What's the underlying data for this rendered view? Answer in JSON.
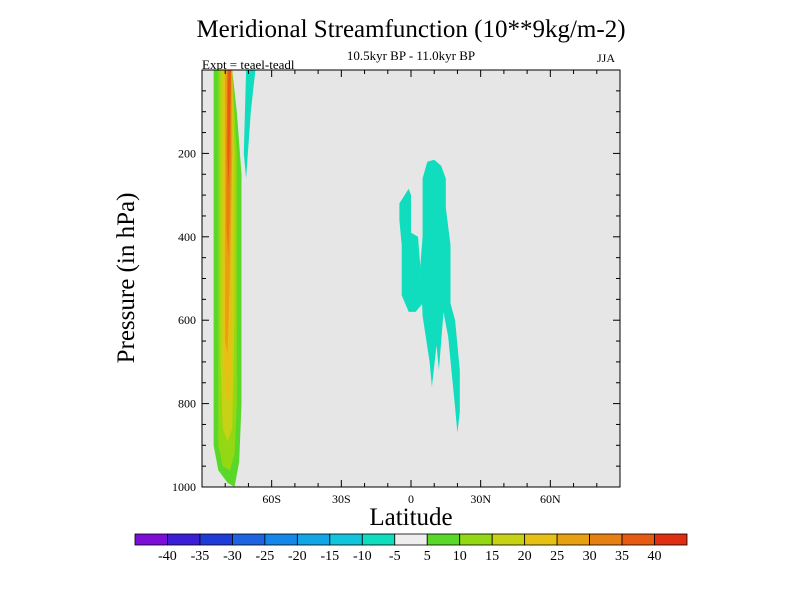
{
  "chart_data": {
    "type": "contour",
    "title": "Meridional Streamfunction (10**9kg/m-2)",
    "subtitle": "10.5kyr BP - 11.0kyr BP",
    "experiment": "Expt = teael-teadl",
    "season": "JJA",
    "xlabel": "Latitude",
    "ylabel": "Pressure (in hPa)",
    "xlim": [
      -90,
      90
    ],
    "ylim": [
      1000,
      0
    ],
    "x_ticks": [
      {
        "value": -60,
        "label": "60S"
      },
      {
        "value": -30,
        "label": "30S"
      },
      {
        "value": 0,
        "label": "0"
      },
      {
        "value": 30,
        "label": "30N"
      },
      {
        "value": 60,
        "label": "60N"
      }
    ],
    "y_ticks": [
      {
        "value": 200,
        "label": "200"
      },
      {
        "value": 400,
        "label": "400"
      },
      {
        "value": 600,
        "label": "600"
      },
      {
        "value": 800,
        "label": "800"
      },
      {
        "value": 1000,
        "label": "1000"
      }
    ],
    "background_color": "#e6e6e6",
    "colorbar": {
      "levels": [
        -40,
        -35,
        -30,
        -25,
        -20,
        -15,
        -10,
        -5,
        5,
        10,
        15,
        20,
        25,
        30,
        35,
        40
      ],
      "colors": [
        "#7d0ed8",
        "#3b1ed6",
        "#1e3cd8",
        "#1e64e0",
        "#1487e8",
        "#12a6e6",
        "#10c5dc",
        "#10dcbe",
        "#eeeeee",
        "#5ad82a",
        "#94d814",
        "#c8d214",
        "#e6c012",
        "#e6a012",
        "#e68012",
        "#e65a12",
        "#e02e12"
      ]
    },
    "regions": [
      {
        "name": "positive-5",
        "fill": "#5ad82a",
        "points": [
          [
            -85,
            0
          ],
          [
            -77,
            0
          ],
          [
            -75,
            100
          ],
          [
            -73,
            250
          ],
          [
            -73,
            400
          ],
          [
            -73,
            600
          ],
          [
            -73,
            800
          ],
          [
            -74,
            940
          ],
          [
            -76,
            1000
          ],
          [
            -79,
            990
          ],
          [
            -83,
            960
          ],
          [
            -85,
            900
          ],
          [
            -85,
            600
          ],
          [
            -85,
            300
          ]
        ]
      },
      {
        "name": "positive-10",
        "fill": "#94d814",
        "points": [
          [
            -83,
            0
          ],
          [
            -77,
            0
          ],
          [
            -75,
            200
          ],
          [
            -75,
            500
          ],
          [
            -75,
            800
          ],
          [
            -76,
            920
          ],
          [
            -78,
            960
          ],
          [
            -81,
            950
          ],
          [
            -83,
            900
          ],
          [
            -83,
            600
          ],
          [
            -83,
            300
          ]
        ]
      },
      {
        "name": "positive-15",
        "fill": "#c8d214",
        "points": [
          [
            -82,
            0
          ],
          [
            -77,
            0
          ],
          [
            -76,
            200
          ],
          [
            -76,
            600
          ],
          [
            -77,
            860
          ],
          [
            -79,
            890
          ],
          [
            -81,
            860
          ],
          [
            -82,
            700
          ],
          [
            -82,
            300
          ]
        ]
      },
      {
        "name": "positive-20",
        "fill": "#e6c012",
        "points": [
          [
            -81,
            0
          ],
          [
            -77,
            0
          ],
          [
            -77,
            300
          ],
          [
            -77,
            600
          ],
          [
            -78,
            800
          ],
          [
            -80,
            780
          ],
          [
            -81,
            600
          ],
          [
            -81,
            300
          ]
        ]
      },
      {
        "name": "positive-25",
        "fill": "#e6a012",
        "points": [
          [
            -80,
            0
          ],
          [
            -77,
            0
          ],
          [
            -77,
            200
          ],
          [
            -78,
            500
          ],
          [
            -79,
            680
          ],
          [
            -80,
            650
          ],
          [
            -80,
            400
          ]
        ]
      },
      {
        "name": "positive-30",
        "fill": "#e68012",
        "points": [
          [
            -79,
            0
          ],
          [
            -77.5,
            0
          ],
          [
            -77.5,
            200
          ],
          [
            -78.5,
            450
          ],
          [
            -79.5,
            380
          ],
          [
            -79.5,
            200
          ]
        ]
      },
      {
        "name": "positive-35",
        "fill": "#e65a12",
        "points": [
          [
            -79,
            0
          ],
          [
            -77.5,
            0
          ],
          [
            -78,
            150
          ],
          [
            -78.5,
            280
          ],
          [
            -79,
            200
          ]
        ]
      },
      {
        "name": "negative-5-highlat",
        "fill": "#10dcbe",
        "points": [
          [
            -71,
            0
          ],
          [
            -67,
            0
          ],
          [
            -69,
            100
          ],
          [
            -71,
            260
          ],
          [
            -72,
            200
          ]
        ]
      },
      {
        "name": "negative-5-west",
        "fill": "#10dcbe",
        "points": [
          [
            -5,
            320
          ],
          [
            -1,
            285
          ],
          [
            0,
            300
          ],
          [
            0,
            390
          ],
          [
            3,
            400
          ],
          [
            4,
            470
          ],
          [
            5,
            560
          ],
          [
            2,
            580
          ],
          [
            -1,
            580
          ],
          [
            -4,
            540
          ],
          [
            -4,
            420
          ],
          [
            -5,
            360
          ]
        ]
      },
      {
        "name": "negative-5-east",
        "fill": "#10dcbe",
        "points": [
          [
            5,
            260
          ],
          [
            7,
            220
          ],
          [
            10,
            215
          ],
          [
            13,
            230
          ],
          [
            15,
            260
          ],
          [
            15,
            330
          ],
          [
            17,
            420
          ],
          [
            17,
            560
          ],
          [
            19,
            600
          ],
          [
            21,
            720
          ],
          [
            21,
            820
          ],
          [
            20,
            870
          ],
          [
            19,
            810
          ],
          [
            16,
            640
          ],
          [
            14,
            580
          ],
          [
            12,
            720
          ],
          [
            11,
            660
          ],
          [
            9,
            760
          ],
          [
            8,
            700
          ],
          [
            5,
            590
          ],
          [
            4,
            470
          ],
          [
            5,
            400
          ]
        ]
      }
    ]
  }
}
